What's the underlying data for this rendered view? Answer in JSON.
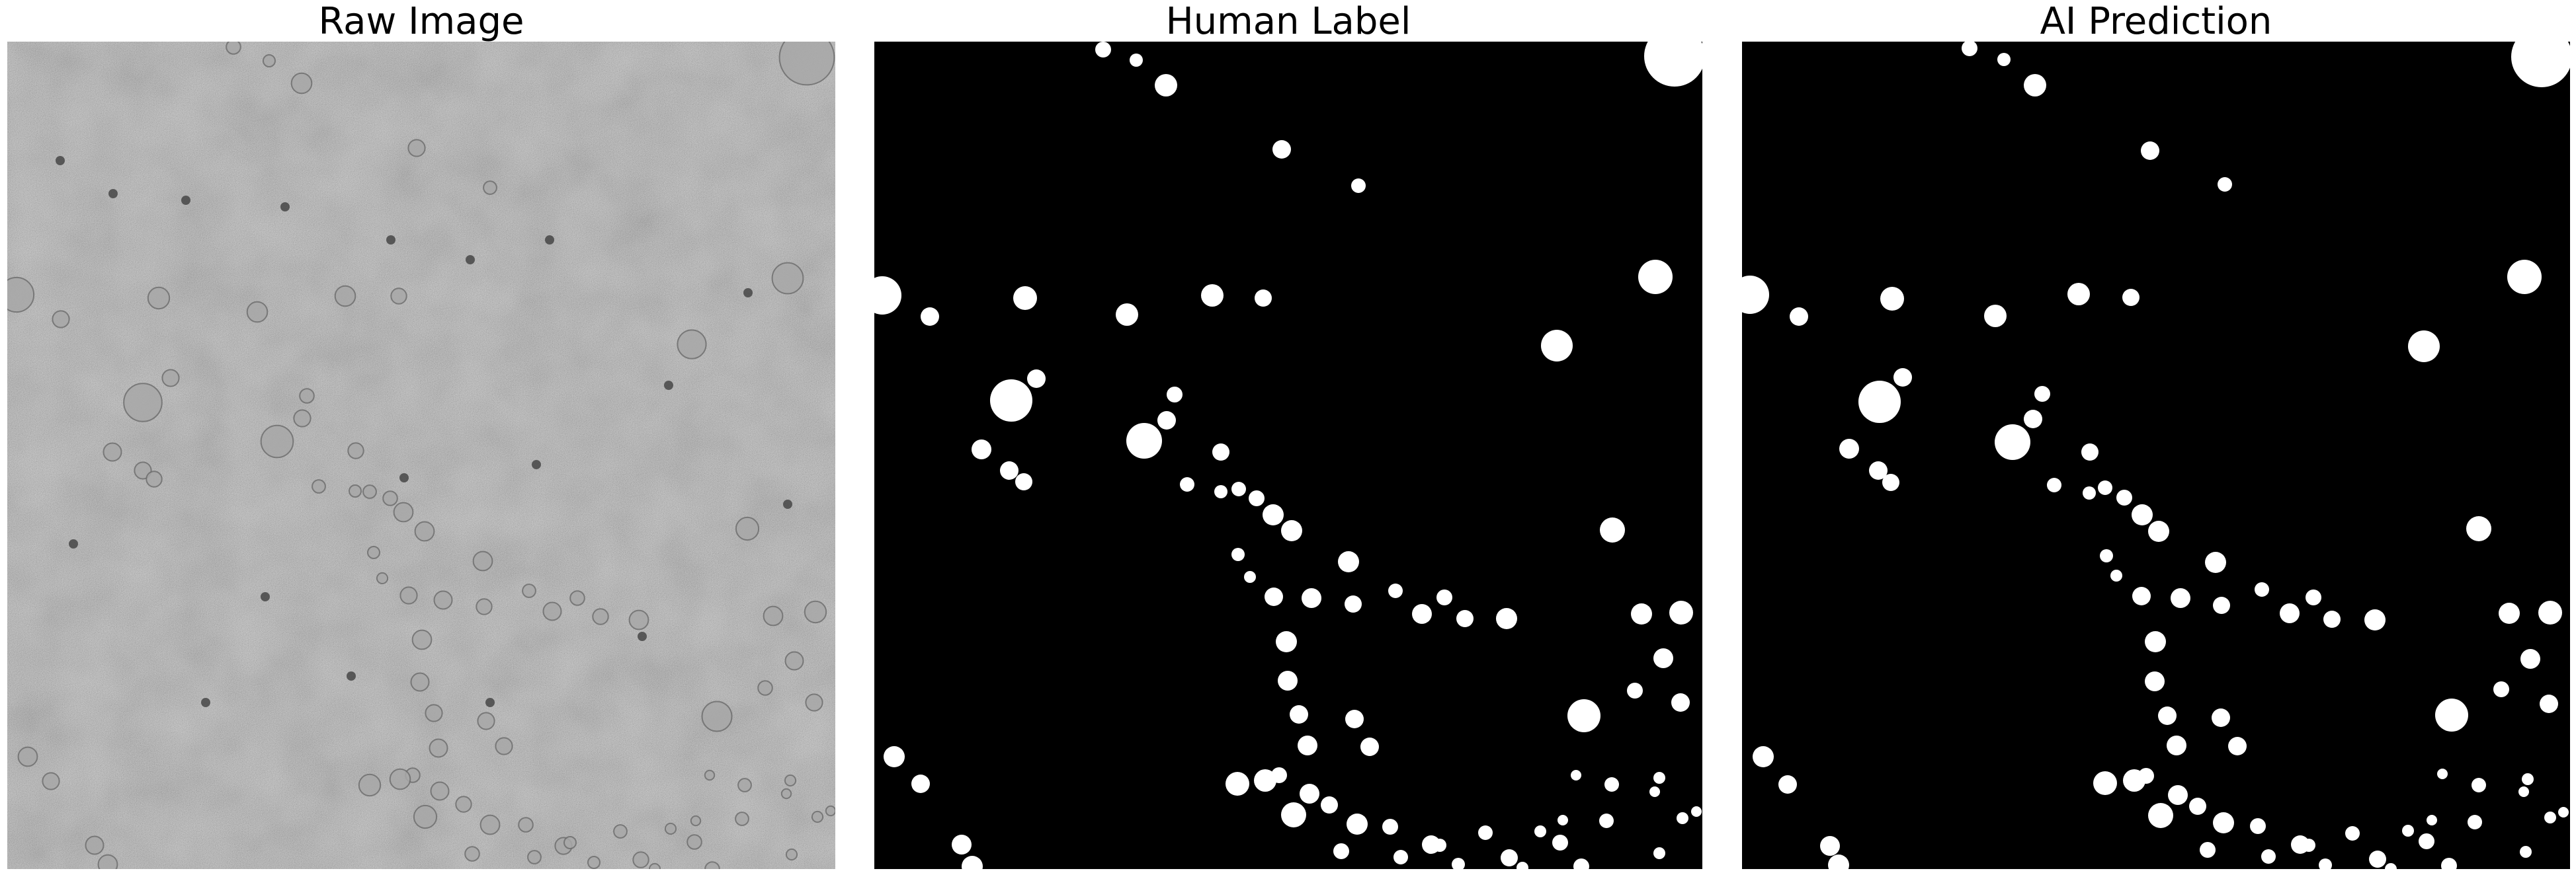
{
  "panels": [
    {
      "id": "raw",
      "title": "Raw Image",
      "kind": "grayscale-micrograph"
    },
    {
      "id": "label",
      "title": "Human Label",
      "kind": "binary-mask"
    },
    {
      "id": "pred",
      "title": "AI Prediction",
      "kind": "binary-mask"
    }
  ],
  "colors": {
    "background": "#ffffff",
    "mask_background": "#000000",
    "mask_foreground": "#ffffff",
    "raw_mid_gray": "#8f8f8f"
  }
}
